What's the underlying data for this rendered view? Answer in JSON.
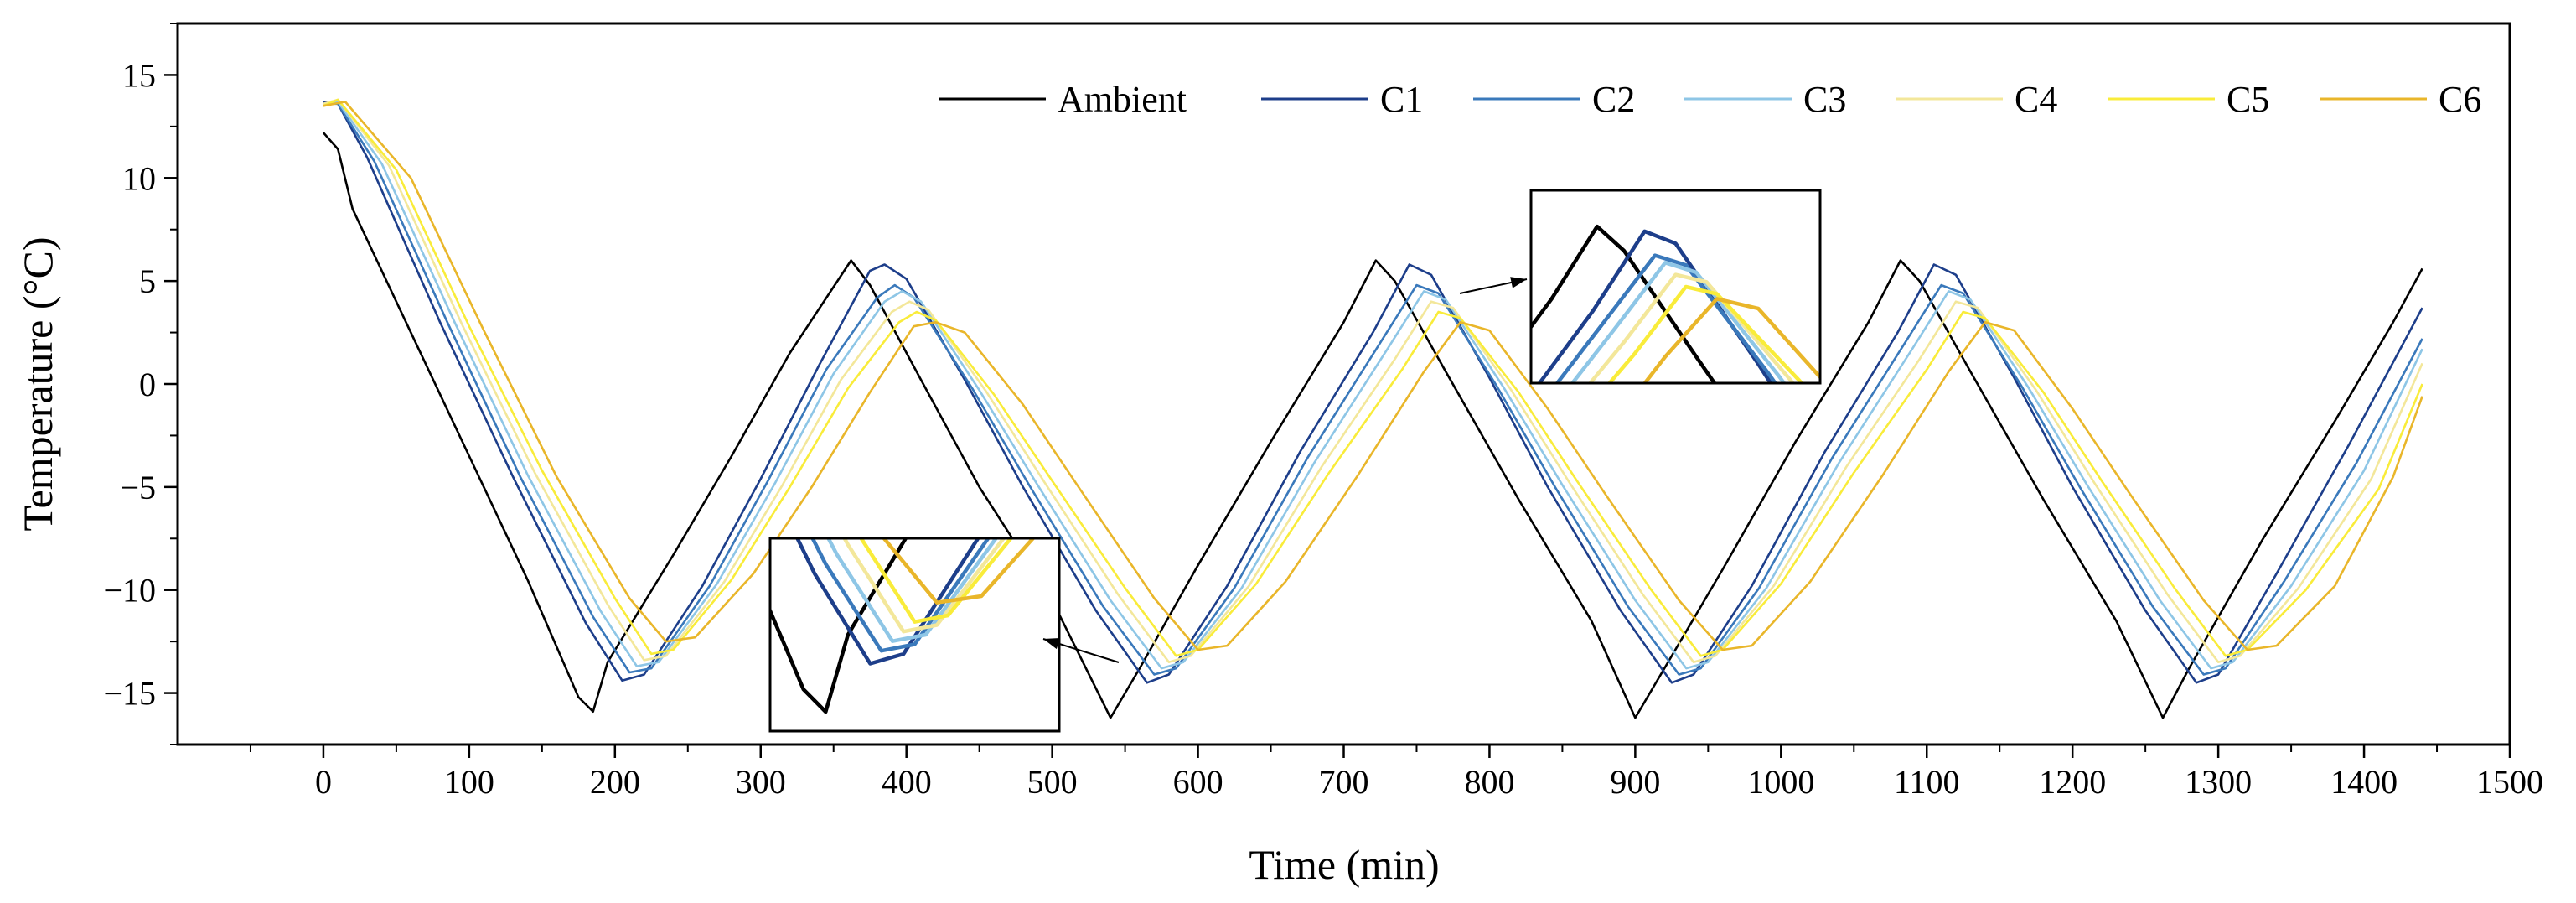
{
  "chart_data": {
    "type": "line",
    "title": "",
    "xlabel": "Time (min)",
    "ylabel": "Temperature (°C)",
    "xlim": [
      -100,
      1500
    ],
    "ylim": [
      -17.5,
      17.5
    ],
    "xticks": [
      0,
      100,
      200,
      300,
      400,
      500,
      600,
      700,
      800,
      900,
      1000,
      1100,
      1200,
      1300,
      1400,
      1500
    ],
    "yticks": [
      -15,
      -10,
      -5,
      0,
      5,
      10,
      15
    ],
    "legend_position": "top-right",
    "grid": false,
    "series": [
      {
        "name": "Ambient",
        "color": "#000000",
        "points": [
          [
            0,
            12.2
          ],
          [
            10,
            11.4
          ],
          [
            20,
            8.5
          ],
          [
            60,
            2.5
          ],
          [
            100,
            -3.5
          ],
          [
            140,
            -9.5
          ],
          [
            175,
            -15.2
          ],
          [
            185,
            -15.9
          ],
          [
            195,
            -13.5
          ],
          [
            240,
            -8.3
          ],
          [
            280,
            -3.5
          ],
          [
            320,
            1.5
          ],
          [
            362,
            6.0
          ],
          [
            375,
            4.8
          ],
          [
            410,
            0.2
          ],
          [
            450,
            -5.0
          ],
          [
            500,
            -10.5
          ],
          [
            540,
            -16.2
          ],
          [
            560,
            -13.8
          ],
          [
            600,
            -8.8
          ],
          [
            650,
            -2.8
          ],
          [
            700,
            3.0
          ],
          [
            722,
            6.0
          ],
          [
            735,
            5.0
          ],
          [
            770,
            0.6
          ],
          [
            820,
            -5.6
          ],
          [
            870,
            -11.5
          ],
          [
            900,
            -16.2
          ],
          [
            920,
            -13.8
          ],
          [
            960,
            -9.0
          ],
          [
            1010,
            -2.8
          ],
          [
            1060,
            3.0
          ],
          [
            1082,
            6.0
          ],
          [
            1095,
            5.0
          ],
          [
            1130,
            0.6
          ],
          [
            1180,
            -5.6
          ],
          [
            1230,
            -11.5
          ],
          [
            1262,
            -16.2
          ],
          [
            1280,
            -13.8
          ],
          [
            1330,
            -7.6
          ],
          [
            1380,
            -1.8
          ],
          [
            1420,
            3.0
          ],
          [
            1440,
            5.6
          ]
        ]
      },
      {
        "name": "C1",
        "color": "#1d3e8a",
        "points": [
          [
            0,
            13.7
          ],
          [
            10,
            13.6
          ],
          [
            30,
            11.0
          ],
          [
            80,
            3.0
          ],
          [
            130,
            -4.5
          ],
          [
            180,
            -11.6
          ],
          [
            205,
            -14.4
          ],
          [
            220,
            -14.1
          ],
          [
            260,
            -9.8
          ],
          [
            300,
            -4.6
          ],
          [
            340,
            0.9
          ],
          [
            375,
            5.5
          ],
          [
            385,
            5.8
          ],
          [
            400,
            5.1
          ],
          [
            440,
            0.2
          ],
          [
            480,
            -5.0
          ],
          [
            530,
            -11.0
          ],
          [
            565,
            -14.5
          ],
          [
            580,
            -14.1
          ],
          [
            620,
            -9.8
          ],
          [
            670,
            -3.3
          ],
          [
            720,
            2.5
          ],
          [
            745,
            5.8
          ],
          [
            760,
            5.3
          ],
          [
            800,
            0.3
          ],
          [
            840,
            -5.0
          ],
          [
            890,
            -11.0
          ],
          [
            925,
            -14.5
          ],
          [
            940,
            -14.1
          ],
          [
            980,
            -9.8
          ],
          [
            1030,
            -3.3
          ],
          [
            1080,
            2.5
          ],
          [
            1105,
            5.8
          ],
          [
            1120,
            5.3
          ],
          [
            1160,
            0.3
          ],
          [
            1200,
            -5.0
          ],
          [
            1250,
            -11.0
          ],
          [
            1285,
            -14.5
          ],
          [
            1300,
            -14.1
          ],
          [
            1340,
            -9.2
          ],
          [
            1390,
            -2.9
          ],
          [
            1440,
            3.7
          ]
        ]
      },
      {
        "name": "C2",
        "color": "#3a79bb",
        "points": [
          [
            0,
            13.6
          ],
          [
            10,
            13.6
          ],
          [
            35,
            10.8
          ],
          [
            85,
            3.0
          ],
          [
            135,
            -4.5
          ],
          [
            185,
            -11.3
          ],
          [
            210,
            -14.0
          ],
          [
            225,
            -13.8
          ],
          [
            265,
            -9.8
          ],
          [
            305,
            -4.7
          ],
          [
            345,
            0.7
          ],
          [
            380,
            4.2
          ],
          [
            392,
            4.8
          ],
          [
            405,
            4.2
          ],
          [
            445,
            -0.2
          ],
          [
            485,
            -5.0
          ],
          [
            535,
            -10.8
          ],
          [
            570,
            -14.1
          ],
          [
            585,
            -13.8
          ],
          [
            625,
            -9.9
          ],
          [
            675,
            -3.6
          ],
          [
            725,
            2.0
          ],
          [
            750,
            4.8
          ],
          [
            765,
            4.4
          ],
          [
            805,
            -0.1
          ],
          [
            845,
            -5.0
          ],
          [
            895,
            -10.8
          ],
          [
            930,
            -14.1
          ],
          [
            945,
            -13.8
          ],
          [
            985,
            -9.9
          ],
          [
            1035,
            -3.6
          ],
          [
            1085,
            2.0
          ],
          [
            1110,
            4.8
          ],
          [
            1125,
            4.4
          ],
          [
            1165,
            -0.1
          ],
          [
            1205,
            -5.0
          ],
          [
            1255,
            -10.8
          ],
          [
            1290,
            -14.1
          ],
          [
            1305,
            -13.8
          ],
          [
            1345,
            -9.6
          ],
          [
            1395,
            -3.8
          ],
          [
            1440,
            2.2
          ]
        ]
      },
      {
        "name": "C3",
        "color": "#8ec6e6",
        "points": [
          [
            0,
            13.6
          ],
          [
            10,
            13.7
          ],
          [
            40,
            10.7
          ],
          [
            90,
            3.0
          ],
          [
            140,
            -4.4
          ],
          [
            190,
            -11.0
          ],
          [
            215,
            -13.7
          ],
          [
            230,
            -13.5
          ],
          [
            270,
            -9.7
          ],
          [
            310,
            -4.8
          ],
          [
            350,
            0.5
          ],
          [
            385,
            4.0
          ],
          [
            397,
            4.5
          ],
          [
            410,
            4.0
          ],
          [
            450,
            -0.3
          ],
          [
            490,
            -4.9
          ],
          [
            540,
            -10.5
          ],
          [
            575,
            -13.8
          ],
          [
            590,
            -13.5
          ],
          [
            630,
            -9.9
          ],
          [
            680,
            -3.8
          ],
          [
            730,
            1.7
          ],
          [
            755,
            4.5
          ],
          [
            770,
            4.1
          ],
          [
            810,
            -0.2
          ],
          [
            850,
            -4.9
          ],
          [
            900,
            -10.5
          ],
          [
            935,
            -13.8
          ],
          [
            950,
            -13.5
          ],
          [
            990,
            -9.9
          ],
          [
            1040,
            -3.8
          ],
          [
            1090,
            1.7
          ],
          [
            1115,
            4.5
          ],
          [
            1130,
            4.1
          ],
          [
            1170,
            -0.2
          ],
          [
            1210,
            -4.9
          ],
          [
            1260,
            -10.5
          ],
          [
            1295,
            -13.8
          ],
          [
            1310,
            -13.5
          ],
          [
            1350,
            -9.8
          ],
          [
            1400,
            -4.2
          ],
          [
            1440,
            1.7
          ]
        ]
      },
      {
        "name": "C4",
        "color": "#f3e79a",
        "points": [
          [
            0,
            13.6
          ],
          [
            10,
            13.8
          ],
          [
            45,
            10.6
          ],
          [
            95,
            2.9
          ],
          [
            145,
            -4.3
          ],
          [
            195,
            -10.7
          ],
          [
            220,
            -13.4
          ],
          [
            235,
            -13.2
          ],
          [
            275,
            -9.6
          ],
          [
            315,
            -4.9
          ],
          [
            355,
            0.2
          ],
          [
            390,
            3.5
          ],
          [
            402,
            4.0
          ],
          [
            415,
            3.6
          ],
          [
            455,
            -0.4
          ],
          [
            495,
            -4.8
          ],
          [
            545,
            -10.2
          ],
          [
            580,
            -13.5
          ],
          [
            595,
            -13.2
          ],
          [
            635,
            -9.8
          ],
          [
            685,
            -4.0
          ],
          [
            735,
            1.2
          ],
          [
            760,
            4.0
          ],
          [
            775,
            3.7
          ],
          [
            815,
            -0.3
          ],
          [
            855,
            -4.8
          ],
          [
            905,
            -10.2
          ],
          [
            940,
            -13.5
          ],
          [
            955,
            -13.2
          ],
          [
            995,
            -9.8
          ],
          [
            1045,
            -4.0
          ],
          [
            1095,
            1.2
          ],
          [
            1120,
            4.0
          ],
          [
            1135,
            3.7
          ],
          [
            1175,
            -0.3
          ],
          [
            1215,
            -4.8
          ],
          [
            1265,
            -10.2
          ],
          [
            1300,
            -13.5
          ],
          [
            1315,
            -13.2
          ],
          [
            1355,
            -9.9
          ],
          [
            1405,
            -4.6
          ],
          [
            1440,
            1.0
          ]
        ]
      },
      {
        "name": "C5",
        "color": "#f9ec3a",
        "points": [
          [
            0,
            13.5
          ],
          [
            10,
            13.8
          ],
          [
            50,
            10.4
          ],
          [
            100,
            2.8
          ],
          [
            150,
            -4.2
          ],
          [
            200,
            -10.4
          ],
          [
            225,
            -13.1
          ],
          [
            240,
            -12.9
          ],
          [
            280,
            -9.5
          ],
          [
            320,
            -5.0
          ],
          [
            360,
            -0.2
          ],
          [
            395,
            3.0
          ],
          [
            407,
            3.5
          ],
          [
            420,
            3.1
          ],
          [
            460,
            -0.5
          ],
          [
            500,
            -4.7
          ],
          [
            550,
            -9.9
          ],
          [
            585,
            -13.2
          ],
          [
            600,
            -12.9
          ],
          [
            640,
            -9.7
          ],
          [
            690,
            -4.3
          ],
          [
            740,
            0.7
          ],
          [
            765,
            3.5
          ],
          [
            780,
            3.2
          ],
          [
            820,
            -0.4
          ],
          [
            860,
            -4.7
          ],
          [
            910,
            -9.9
          ],
          [
            945,
            -13.2
          ],
          [
            960,
            -12.9
          ],
          [
            1000,
            -9.7
          ],
          [
            1050,
            -4.3
          ],
          [
            1100,
            0.7
          ],
          [
            1125,
            3.5
          ],
          [
            1140,
            3.2
          ],
          [
            1180,
            -0.4
          ],
          [
            1220,
            -4.7
          ],
          [
            1270,
            -9.9
          ],
          [
            1305,
            -13.2
          ],
          [
            1320,
            -12.9
          ],
          [
            1360,
            -10.0
          ],
          [
            1410,
            -5.1
          ],
          [
            1440,
            0.0
          ]
        ]
      },
      {
        "name": "C6",
        "color": "#e9b62a",
        "points": [
          [
            0,
            13.5
          ],
          [
            15,
            13.7
          ],
          [
            60,
            10.0
          ],
          [
            110,
            2.6
          ],
          [
            160,
            -4.5
          ],
          [
            210,
            -10.4
          ],
          [
            235,
            -12.5
          ],
          [
            255,
            -12.3
          ],
          [
            295,
            -9.2
          ],
          [
            335,
            -5.0
          ],
          [
            375,
            -0.4
          ],
          [
            405,
            2.8
          ],
          [
            420,
            3.0
          ],
          [
            440,
            2.5
          ],
          [
            480,
            -1.0
          ],
          [
            520,
            -5.2
          ],
          [
            570,
            -10.4
          ],
          [
            600,
            -12.9
          ],
          [
            620,
            -12.7
          ],
          [
            660,
            -9.6
          ],
          [
            710,
            -4.4
          ],
          [
            755,
            0.6
          ],
          [
            780,
            3.0
          ],
          [
            800,
            2.6
          ],
          [
            840,
            -1.2
          ],
          [
            880,
            -5.4
          ],
          [
            930,
            -10.5
          ],
          [
            960,
            -12.9
          ],
          [
            980,
            -12.7
          ],
          [
            1020,
            -9.6
          ],
          [
            1070,
            -4.4
          ],
          [
            1115,
            0.6
          ],
          [
            1140,
            3.0
          ],
          [
            1160,
            2.6
          ],
          [
            1200,
            -1.2
          ],
          [
            1240,
            -5.4
          ],
          [
            1290,
            -10.5
          ],
          [
            1320,
            -12.9
          ],
          [
            1340,
            -12.7
          ],
          [
            1380,
            -9.8
          ],
          [
            1420,
            -4.5
          ],
          [
            1440,
            -0.6
          ]
        ]
      }
    ]
  }
}
